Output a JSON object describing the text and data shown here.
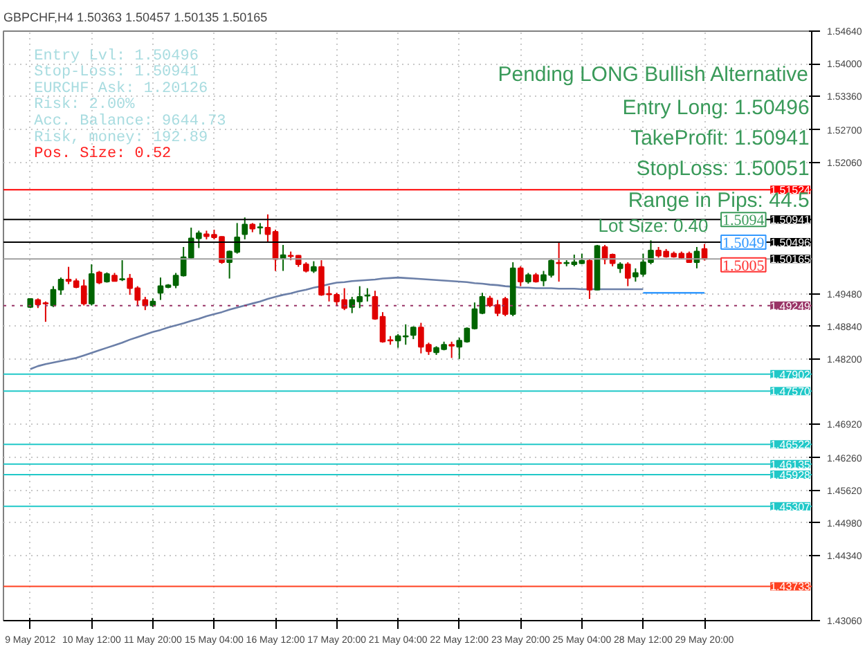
{
  "chart_data": {
    "type": "candlestick",
    "title": "GBPCHF,H4  1.50363 1.50457 1.50135 1.50165",
    "categories": [
      "9 May 2012",
      null,
      null,
      null,
      null,
      null,
      null,
      null,
      "10 May 12:00",
      null,
      null,
      null,
      null,
      null,
      null,
      null,
      "11 May 20:00",
      null,
      null,
      null,
      null,
      null,
      null,
      null,
      "15 May 04:00",
      null,
      null,
      null,
      null,
      null,
      null,
      null,
      "16 May 12:00",
      null,
      null,
      null,
      null,
      null,
      null,
      null,
      "17 May 20:00",
      null,
      null,
      null,
      null,
      null,
      null,
      null,
      "21 May 04:00",
      null,
      null,
      null,
      null,
      null,
      null,
      null,
      "22 May 12:00",
      null,
      null,
      null,
      null,
      null,
      null,
      null,
      "23 May 20:00",
      null,
      null,
      null,
      null,
      null,
      null,
      null,
      "25 May 04:00",
      null,
      null,
      null,
      null,
      null,
      null,
      null,
      "28 May 12:00",
      null,
      null,
      null,
      null,
      null,
      null,
      null,
      "29 May 20:00"
    ],
    "ohlc": [
      [
        1.4922,
        1.4939,
        1.492,
        1.4938
      ],
      [
        1.4936,
        1.4939,
        1.492,
        1.4927
      ],
      [
        1.493,
        1.4933,
        1.4893,
        1.4929
      ],
      [
        1.4925,
        1.4963,
        1.4922,
        1.4956
      ],
      [
        1.4956,
        1.498,
        1.4946,
        1.4976
      ],
      [
        1.4976,
        1.5001,
        1.4967,
        1.4973
      ],
      [
        1.4973,
        1.4978,
        1.4959,
        1.4961
      ],
      [
        1.4963,
        1.4976,
        1.4925,
        1.4929
      ],
      [
        1.4929,
        1.5006,
        1.4925,
        1.4987
      ],
      [
        1.499,
        1.4993,
        1.4967,
        1.497
      ],
      [
        1.4972,
        1.499,
        1.497,
        1.4987
      ],
      [
        1.4984,
        1.4989,
        1.4972,
        1.4973
      ],
      [
        1.4976,
        1.5014,
        1.4973,
        1.4977
      ],
      [
        1.4978,
        1.4987,
        1.4946,
        1.4959
      ],
      [
        1.4959,
        1.4963,
        1.4925,
        1.4936
      ],
      [
        1.4936,
        1.4942,
        1.4916,
        1.4925
      ],
      [
        1.4925,
        1.4939,
        1.4922,
        1.4933
      ],
      [
        1.495,
        1.498,
        1.4936,
        1.4963
      ],
      [
        1.4961,
        1.4967,
        1.4959,
        1.4965
      ],
      [
        1.4965,
        1.4989,
        1.4959,
        1.4984
      ],
      [
        1.4984,
        1.504,
        1.4982,
        1.502
      ],
      [
        1.5019,
        1.5078,
        1.5016,
        1.5057
      ],
      [
        1.5057,
        1.5072,
        1.5038,
        1.5067
      ],
      [
        1.5065,
        1.5072,
        1.5055,
        1.5061
      ],
      [
        1.5064,
        1.5074,
        1.5055,
        1.5059
      ],
      [
        1.506,
        1.5061,
        1.5007,
        1.501
      ],
      [
        1.501,
        1.5033,
        1.4978,
        1.5031
      ],
      [
        1.503,
        1.5087,
        1.5027,
        1.5059
      ],
      [
        1.5065,
        1.5098,
        1.5055,
        1.5084
      ],
      [
        1.5084,
        1.5087,
        1.5069,
        1.5076
      ],
      [
        1.5078,
        1.5087,
        1.5065,
        1.5079
      ],
      [
        1.5078,
        1.5104,
        1.5049,
        1.5065
      ],
      [
        1.507,
        1.5074,
        1.4993,
        1.5016
      ],
      [
        1.5018,
        1.5044,
        1.4993,
        1.5024
      ],
      [
        1.5023,
        1.5031,
        1.5014,
        1.5022
      ],
      [
        1.5023,
        1.5024,
        1.5001,
        1.5006
      ],
      [
        1.5006,
        1.501,
        1.499,
        1.4993
      ],
      [
        1.4993,
        1.5012,
        1.4989,
        1.5001
      ],
      [
        1.5001,
        1.5014,
        1.4944,
        1.4946
      ],
      [
        1.4948,
        1.4963,
        1.4933,
        1.4947
      ],
      [
        1.4946,
        1.495,
        1.4925,
        1.4933
      ],
      [
        1.4936,
        1.4959,
        1.4916,
        1.492
      ],
      [
        1.4922,
        1.4942,
        1.491,
        1.4936
      ],
      [
        1.4933,
        1.4963,
        1.492,
        1.4942
      ],
      [
        1.4944,
        1.4959,
        1.4933,
        1.4945
      ],
      [
        1.4942,
        1.4954,
        1.4897,
        1.4899
      ],
      [
        1.4903,
        1.4912,
        1.4852,
        1.4854
      ],
      [
        1.4857,
        1.4865,
        1.4848,
        1.4856
      ],
      [
        1.4856,
        1.4869,
        1.4842,
        1.4865
      ],
      [
        1.4864,
        1.4888,
        1.4848,
        1.4865
      ],
      [
        1.4867,
        1.4884,
        1.4859,
        1.4882
      ],
      [
        1.4882,
        1.4891,
        1.4831,
        1.4844
      ],
      [
        1.4848,
        1.4852,
        1.4828,
        1.4835
      ],
      [
        1.4833,
        1.4845,
        1.4828,
        1.4842
      ],
      [
        1.4839,
        1.4854,
        1.4837,
        1.4848
      ],
      [
        1.4848,
        1.4854,
        1.4822,
        1.4846
      ],
      [
        1.4844,
        1.4862,
        1.482,
        1.4856
      ],
      [
        1.4854,
        1.4882,
        1.4852,
        1.488
      ],
      [
        1.488,
        1.4931,
        1.4878,
        1.4918
      ],
      [
        1.491,
        1.495,
        1.4908,
        1.4942
      ],
      [
        1.4939,
        1.4944,
        1.4922,
        1.4925
      ],
      [
        1.4926,
        1.4936,
        1.4904,
        1.491
      ],
      [
        1.4938,
        1.4942,
        1.4904,
        1.4908
      ],
      [
        1.4908,
        1.501,
        1.4904,
        1.4998
      ],
      [
        1.4998,
        1.5002,
        1.4963,
        1.4972
      ],
      [
        1.4972,
        1.4989,
        1.4968,
        1.4985
      ],
      [
        1.4985,
        1.4989,
        1.497,
        1.4972
      ],
      [
        1.4974,
        1.4993,
        1.4963,
        1.4985
      ],
      [
        1.4985,
        1.5016,
        1.498,
        1.5013
      ],
      [
        1.5009,
        1.5049,
        1.4972,
        1.5008
      ],
      [
        1.5008,
        1.5014,
        1.5002,
        1.5009
      ],
      [
        1.5006,
        1.5025,
        1.5002,
        1.501
      ],
      [
        1.5008,
        1.5027,
        1.5006,
        1.5013
      ],
      [
        1.5013,
        1.5016,
        1.4938,
        1.4956
      ],
      [
        1.4956,
        1.5044,
        1.4955,
        1.5042
      ],
      [
        1.504,
        1.5044,
        1.5006,
        1.5016
      ],
      [
        1.5025,
        1.5027,
        1.5002,
        1.5008
      ],
      [
        1.4998,
        1.501,
        1.4989,
        1.5006
      ],
      [
        1.5006,
        1.501,
        1.4963,
        1.4979
      ],
      [
        1.4982,
        1.4998,
        1.4972,
        1.4989
      ],
      [
        1.4987,
        1.5027,
        1.4982,
        1.501
      ],
      [
        1.501,
        1.5053,
        1.5006,
        1.5033
      ],
      [
        1.5033,
        1.504,
        1.5019,
        1.5023
      ],
      [
        1.5031,
        1.5036,
        1.5019,
        1.5021
      ],
      [
        1.5027,
        1.5031,
        1.5019,
        1.5021
      ],
      [
        1.5027,
        1.5031,
        1.5016,
        1.5019
      ],
      [
        1.5027,
        1.5031,
        1.501,
        1.501
      ],
      [
        1.501,
        1.504,
        1.4998,
        1.5031
      ],
      [
        1.50363,
        1.50457,
        1.50135,
        1.50165
      ]
    ],
    "series": [
      {
        "type": "line",
        "color": "#6b7fa8",
        "values": [
          1.48,
          1.4806,
          1.481,
          1.4813,
          1.4816,
          1.4819,
          1.4822,
          1.4827,
          1.4832,
          1.4837,
          1.4842,
          1.4847,
          1.4852,
          1.4858,
          1.4863,
          1.4868,
          1.4873,
          1.4877,
          1.4882,
          1.4886,
          1.489,
          1.4895,
          1.4899,
          1.4904,
          1.4908,
          1.4912,
          1.4917,
          1.4921,
          1.4925,
          1.4929,
          1.4933,
          1.4938,
          1.4942,
          1.4946,
          1.4949,
          1.4953,
          1.4956,
          1.496,
          1.4963,
          1.4967,
          1.497,
          1.4971,
          1.4973,
          1.4974,
          1.4975,
          1.4976,
          1.4978,
          1.4979,
          1.498,
          1.4979,
          1.4978,
          1.4977,
          1.4976,
          1.4975,
          1.4974,
          1.4973,
          1.4972,
          1.4971,
          1.4969,
          1.4968,
          1.4966,
          1.4965,
          1.4963,
          1.4962,
          1.496,
          1.496,
          1.4959,
          1.4959,
          1.4959,
          1.4958,
          1.4958,
          1.4958,
          1.4957,
          1.4957,
          1.4957,
          1.4957,
          1.4957,
          1.4957,
          1.4957,
          1.4957,
          1.4957,
          null,
          null,
          null,
          null,
          null,
          null,
          null,
          null
        ]
      },
      {
        "type": "line",
        "color": "#3399ff",
        "values": [
          null,
          null,
          null,
          null,
          null,
          null,
          null,
          null,
          null,
          null,
          null,
          null,
          null,
          null,
          null,
          null,
          null,
          null,
          null,
          null,
          null,
          null,
          null,
          null,
          null,
          null,
          null,
          null,
          null,
          null,
          null,
          null,
          null,
          null,
          null,
          null,
          null,
          null,
          null,
          null,
          null,
          null,
          null,
          null,
          null,
          null,
          null,
          null,
          null,
          null,
          null,
          null,
          null,
          null,
          null,
          null,
          null,
          null,
          null,
          null,
          null,
          null,
          null,
          null,
          null,
          null,
          null,
          null,
          null,
          null,
          null,
          null,
          null,
          null,
          null,
          null,
          null,
          null,
          null,
          null,
          1.495,
          1.495,
          1.495,
          1.495,
          1.495,
          1.495,
          1.495,
          1.495,
          1.495
        ]
      }
    ],
    "ylim": [
      1.4306,
      1.5464
    ],
    "yticks": [
      {
        "value": 1.5464,
        "label": "1.54640"
      },
      {
        "value": 1.54,
        "label": "1.54000"
      },
      {
        "value": 1.5336,
        "label": "1.53360"
      },
      {
        "value": 1.527,
        "label": "1.52700"
      },
      {
        "value": 1.5206,
        "label": "1.52060"
      },
      {
        "value": 1.4948,
        "label": "1.49480"
      },
      {
        "value": 1.4884,
        "label": "1.48840"
      },
      {
        "value": 1.482,
        "label": "1.48200"
      },
      {
        "value": 1.4692,
        "label": "1.46920"
      },
      {
        "value": 1.4626,
        "label": "1.46260"
      },
      {
        "value": 1.4562,
        "label": "1.45620"
      },
      {
        "value": 1.4498,
        "label": "1.44980"
      },
      {
        "value": 1.4434,
        "label": "1.44340"
      },
      {
        "value": 1.4306,
        "label": "1.43060"
      }
    ],
    "grid": true,
    "ref_lines": [
      {
        "axis": "y",
        "value": 1.51524,
        "label": "1.51524",
        "color": "#ff0000"
      },
      {
        "axis": "y",
        "value": 1.50941,
        "label": "1.50941",
        "color": "#000000"
      },
      {
        "axis": "y",
        "value": 1.50496,
        "label": "1.50496",
        "color": "#000000"
      },
      {
        "axis": "y",
        "value": 1.50165,
        "label": "1.50165",
        "color": "#a0a0a0"
      },
      {
        "axis": "y",
        "value": 1.49249,
        "label": "1.49249",
        "color": "#993366",
        "line_style": "dotted"
      },
      {
        "axis": "y",
        "value": 1.47902,
        "label": "1.47902",
        "color": "#20c8c8"
      },
      {
        "axis": "y",
        "value": 1.4757,
        "label": "1.47570",
        "color": "#20c8c8"
      },
      {
        "axis": "y",
        "value": 1.46522,
        "label": "1.46522",
        "color": "#20c8c8"
      },
      {
        "axis": "y",
        "value": 1.46135,
        "label": "1.46135",
        "color": "#20c8c8"
      },
      {
        "axis": "y",
        "value": 1.45928,
        "label": "1.45928",
        "color": "#20c8c8"
      },
      {
        "axis": "y",
        "value": 1.45307,
        "label": "1.45307",
        "color": "#20c8c8"
      },
      {
        "axis": "y",
        "value": 1.43733,
        "label": "1.43733",
        "color": "#ff4020"
      }
    ],
    "annotations": [
      "Entry Lvl:      1.50496",
      "Stop-Loss:      1.50941",
      "EURCHF Ask:     1.20126",
      "Risk:           2.00%",
      "Acc. Balance:   9644.73",
      "Risk, money:    192.89",
      "Pos. Size:      0.52",
      "Pending LONG Bullish Alternative",
      "Entry Long: 1.50496",
      "TakeProfit: 1.50941",
      "StopLoss: 1.50051",
      "Range in Pips: 44.5",
      {
        "text": "1.5094",
        "y": 1.50941
      },
      {
        "text": "1.5049",
        "y": 1.50496
      },
      {
        "text": "1.5005",
        "y": 1.50051
      },
      "Lot Size: 0.40"
    ]
  }
}
